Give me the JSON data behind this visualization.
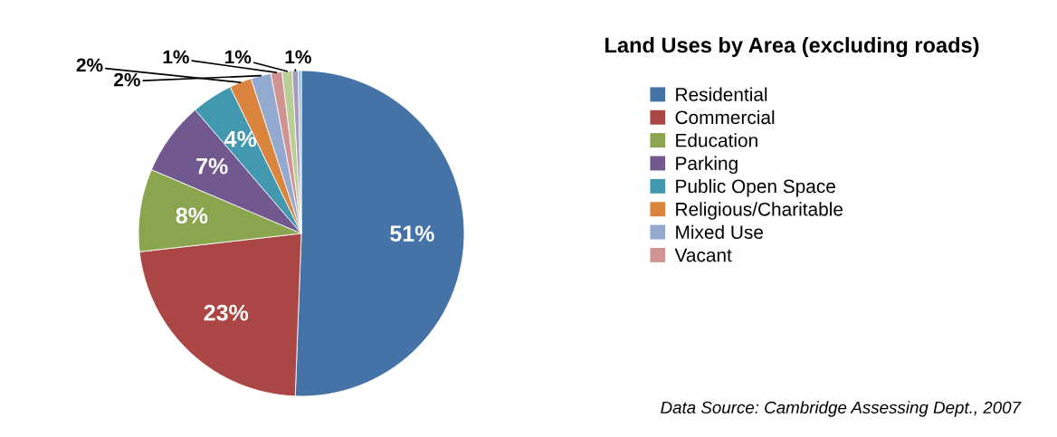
{
  "chart_data": {
    "type": "pie",
    "title": "Land Uses by Area (excluding roads)",
    "categories": [
      "Residential",
      "Commercial",
      "Education",
      "Parking",
      "Public Open Space",
      "Religious/Charitable",
      "Mixed Use",
      "Vacant",
      null,
      null,
      null
    ],
    "values": [
      50.6,
      22.6,
      8.2,
      7.3,
      4.1,
      2.2,
      2.0,
      1.1,
      1.0,
      0.6,
      0.3
    ],
    "value_labels": [
      "51%",
      "23%",
      "8%",
      "7%",
      "4%",
      "2%",
      "2%",
      "1%",
      "1%",
      "1%",
      null
    ],
    "colors": [
      "#4572a7",
      "#aa4643",
      "#89a54e",
      "#71588f",
      "#4198af",
      "#db843d",
      "#93a9cf",
      "#d19392",
      "#b9cd96",
      "#a99bbd",
      "#92c3d5"
    ],
    "legend": "right",
    "annotations": [
      "Data Source: Cambridge Assessing Dept., 2007"
    ]
  }
}
